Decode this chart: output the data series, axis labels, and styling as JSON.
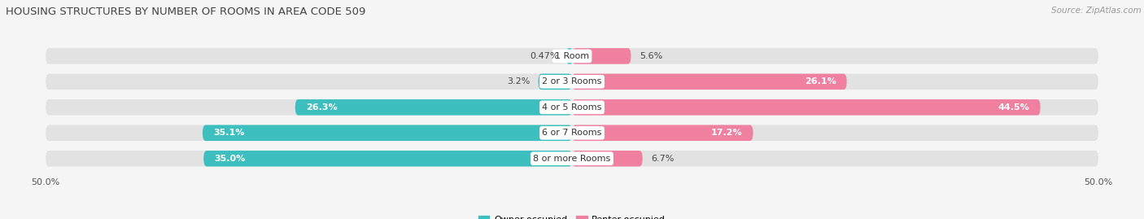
{
  "title": "HOUSING STRUCTURES BY NUMBER OF ROOMS IN AREA CODE 509",
  "source": "Source: ZipAtlas.com",
  "categories": [
    "1 Room",
    "2 or 3 Rooms",
    "4 or 5 Rooms",
    "6 or 7 Rooms",
    "8 or more Rooms"
  ],
  "owner_values": [
    0.47,
    3.2,
    26.3,
    35.1,
    35.0
  ],
  "renter_values": [
    5.6,
    26.1,
    44.5,
    17.2,
    6.7
  ],
  "owner_color": "#3dbfbf",
  "renter_color": "#f080a0",
  "background_color": "#f5f5f5",
  "bar_background": "#e2e2e2",
  "xlim": 50.0,
  "bar_height": 0.62,
  "label_fontsize": 8.0,
  "title_fontsize": 9.5,
  "source_fontsize": 7.5,
  "tick_fontsize": 8.0
}
